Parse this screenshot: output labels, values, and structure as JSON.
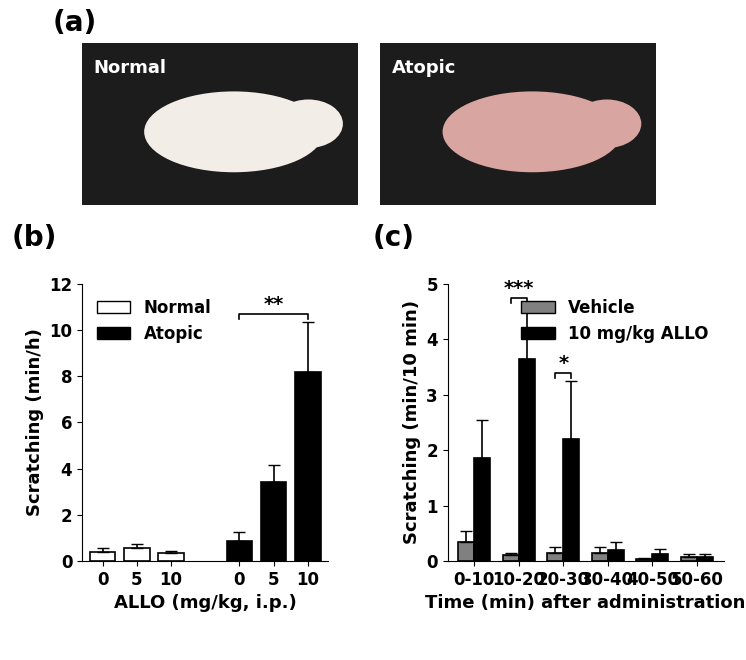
{
  "panel_labels": [
    "(a)",
    "(b)",
    "(c)"
  ],
  "photos": [
    {
      "label": "Normal"
    },
    {
      "label": "Atopic"
    }
  ],
  "chart_data": [
    {
      "type": "bar",
      "categories": [
        "0",
        "5",
        "10",
        null,
        "0",
        "5",
        "10"
      ],
      "x_label": "ALLO (mg/kg, i.p.)",
      "y_label": "Scratching (min/h)",
      "series": [
        {
          "name": "Normal",
          "color": "#ffffff",
          "values": [
            0.4,
            0.55,
            0.35,
            null,
            null,
            null,
            null
          ],
          "errors": [
            0.15,
            0.2,
            0.1,
            null,
            null,
            null,
            null
          ]
        },
        {
          "name": "Atopic",
          "color": "#000000",
          "values": [
            null,
            null,
            null,
            null,
            0.85,
            3.4,
            8.2
          ],
          "errors": [
            null,
            null,
            null,
            null,
            0.4,
            0.75,
            2.15
          ]
        }
      ],
      "ylim": [
        0,
        12
      ],
      "yticks": [
        0,
        2,
        4,
        6,
        8,
        10,
        12
      ],
      "legend": "upper left",
      "annotations": [
        {
          "text": "**",
          "from": 4,
          "to": 6
        }
      ]
    },
    {
      "type": "bar",
      "categories": [
        "0-10",
        "10-20",
        "20-30",
        "30-40",
        "40-50",
        "50-60"
      ],
      "x_label": "Time (min) after administration",
      "y_label": "Scratching (min/10 min)",
      "series": [
        {
          "name": "Vehicle",
          "color": "#808080",
          "values": [
            0.35,
            0.1,
            0.15,
            0.15,
            0.03,
            0.08
          ],
          "errors": [
            0.2,
            0.05,
            0.1,
            0.1,
            0.02,
            0.05
          ]
        },
        {
          "name": "10 mg/kg ALLO",
          "color": "#000000",
          "values": [
            1.85,
            3.65,
            2.2,
            0.2,
            0.12,
            0.07
          ],
          "errors": [
            0.7,
            0.95,
            1.05,
            0.15,
            0.1,
            0.05
          ]
        }
      ],
      "ylim": [
        0,
        5
      ],
      "yticks": [
        0,
        1,
        2,
        3,
        4,
        5
      ],
      "legend": "upper right",
      "annotations": [
        {
          "text": "***",
          "category": 1
        },
        {
          "text": "*",
          "category": 2
        }
      ]
    }
  ]
}
